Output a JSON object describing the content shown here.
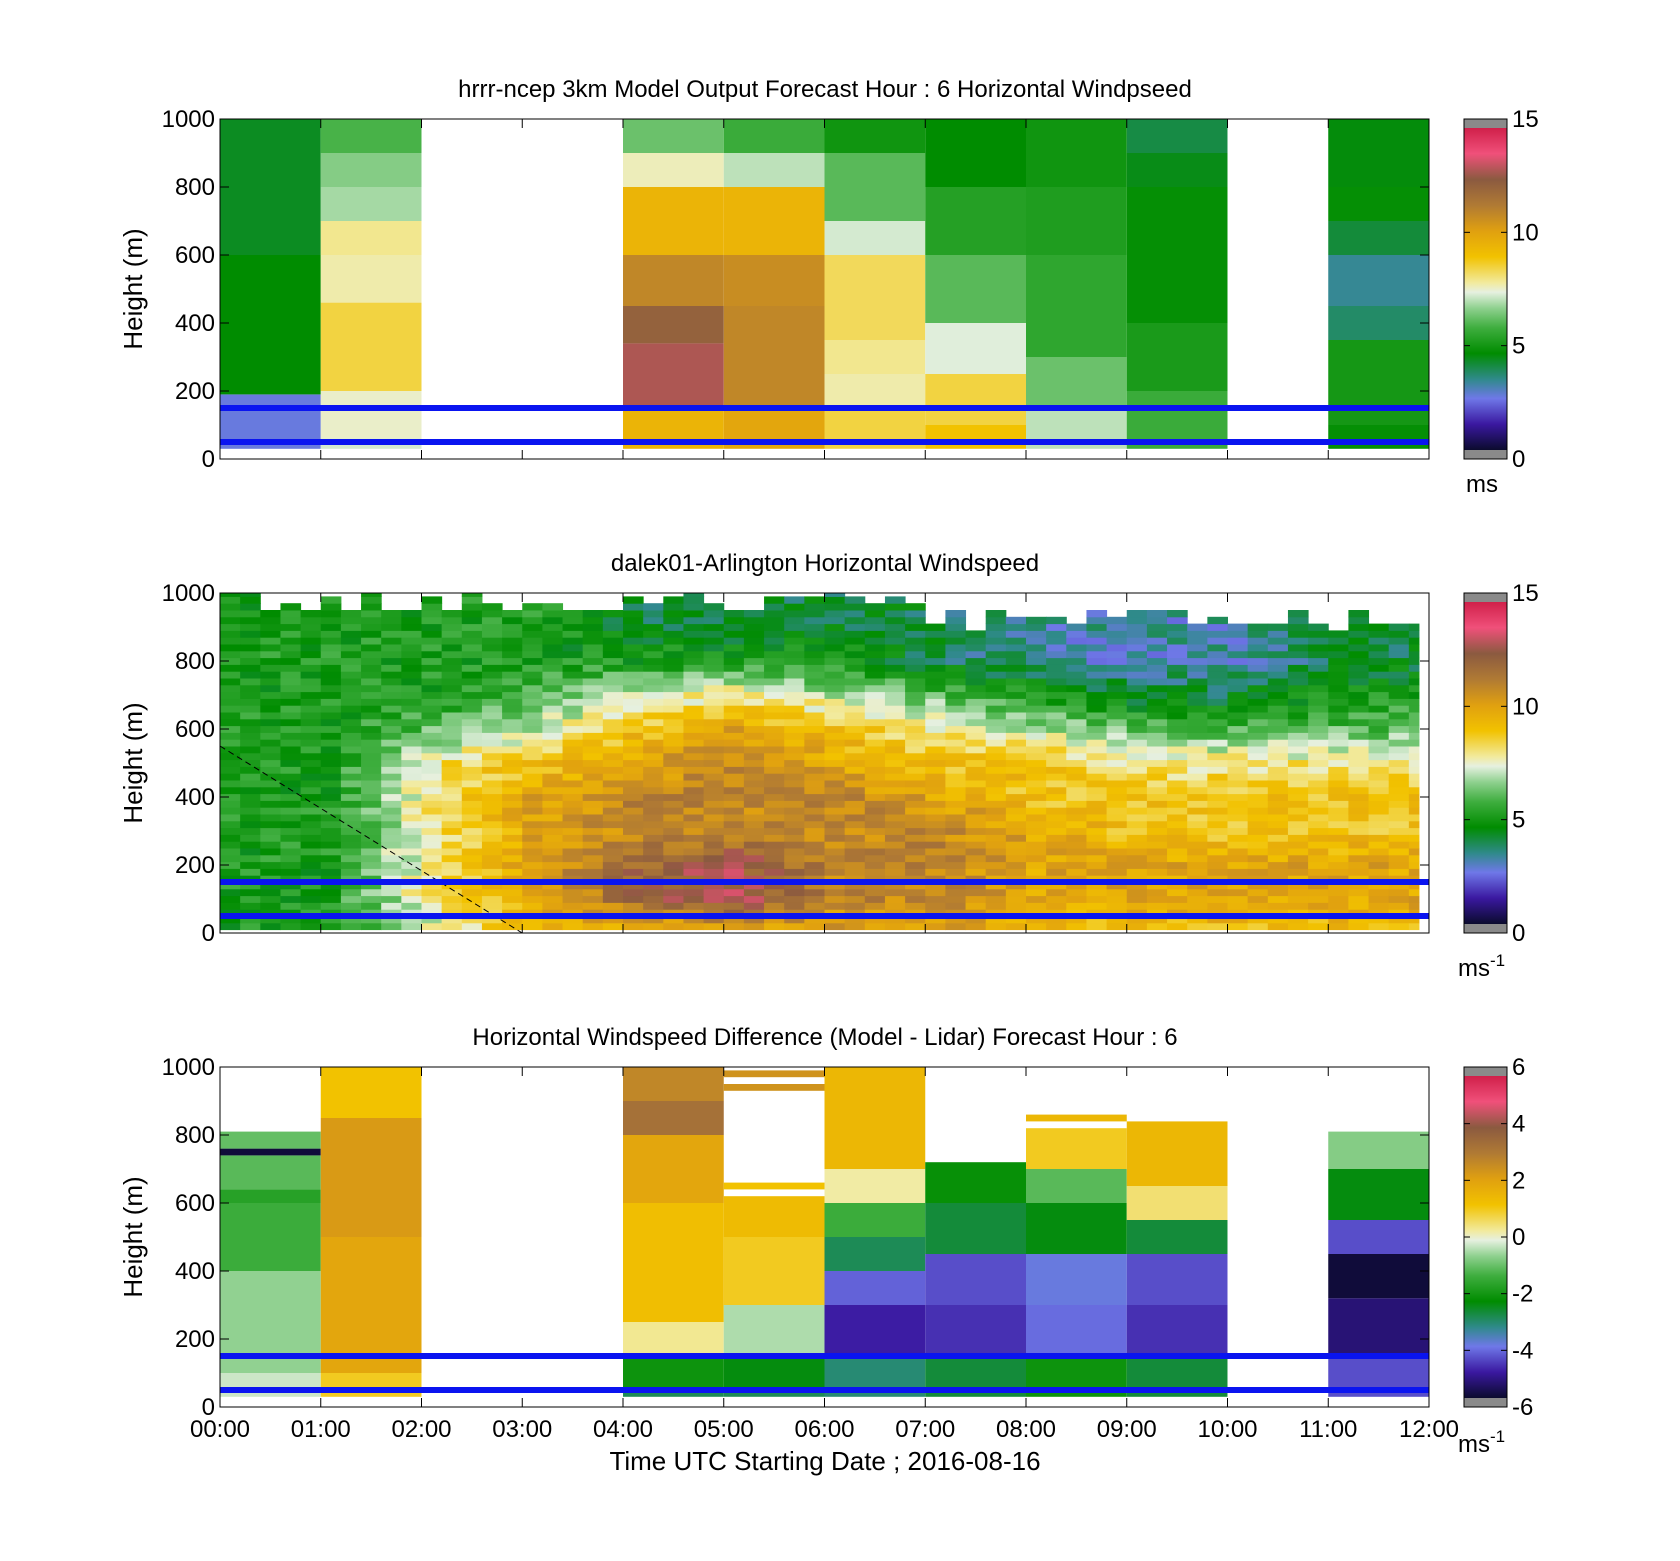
{
  "chart_data": [
    {
      "type": "heatmap",
      "title": "hrrr-ncep 3km Model Output   Forecast Hour : 6 Horizontal Windpseed",
      "ylabel": "Height (m)",
      "xlabel": "",
      "ylim": [
        0,
        1000
      ],
      "yticks": [
        "0",
        "200",
        "400",
        "600",
        "800",
        "1000"
      ],
      "colorbar": {
        "range": [
          0,
          15
        ],
        "ticks": [
          "0",
          "5",
          "10",
          "15"
        ],
        "unit": "ms",
        "unit_sup": ""
      },
      "reference_lines_m": [
        50,
        150
      ],
      "columns": [
        {
          "start": "00:00",
          "bands": [
            [
              30,
              190,
              2.5
            ],
            [
              190,
              600,
              4.5
            ],
            [
              600,
              1000,
              4.2
            ]
          ]
        },
        {
          "start": "01:00",
          "bands": [
            [
              30,
              60,
              7.2
            ],
            [
              60,
              200,
              7.5
            ],
            [
              200,
              460,
              8.5
            ],
            [
              460,
              600,
              7.7
            ],
            [
              600,
              700,
              7.9
            ],
            [
              700,
              800,
              6.8
            ],
            [
              800,
              900,
              6.5
            ],
            [
              900,
              1000,
              5.8
            ]
          ]
        },
        {
          "start": "04:00",
          "bands": [
            [
              30,
              150,
              9.5
            ],
            [
              150,
              340,
              13.0
            ],
            [
              340,
              450,
              12.3
            ],
            [
              450,
              600,
              11.0
            ],
            [
              600,
              800,
              9.5
            ],
            [
              800,
              900,
              7.6
            ],
            [
              900,
              1000,
              6.2
            ]
          ]
        },
        {
          "start": "05:00",
          "bands": [
            [
              30,
              150,
              10.0
            ],
            [
              150,
              450,
              11.0
            ],
            [
              450,
              600,
              10.8
            ],
            [
              600,
              800,
              9.5
            ],
            [
              800,
              900,
              7.0
            ],
            [
              900,
              1000,
              5.6
            ]
          ]
        },
        {
          "start": "06:00",
          "bands": [
            [
              30,
              150,
              8.5
            ],
            [
              150,
              250,
              7.7
            ],
            [
              250,
              350,
              7.9
            ],
            [
              350,
              600,
              8.3
            ],
            [
              600,
              700,
              7.2
            ],
            [
              700,
              900,
              6.0
            ],
            [
              900,
              1000,
              4.8
            ]
          ]
        },
        {
          "start": "07:00",
          "bands": [
            [
              30,
              100,
              9.0
            ],
            [
              100,
              250,
              8.5
            ],
            [
              250,
              400,
              7.3
            ],
            [
              400,
              600,
              6.0
            ],
            [
              600,
              800,
              5.2
            ],
            [
              800,
              1000,
              4.5
            ]
          ]
        },
        {
          "start": "08:00",
          "bands": [
            [
              30,
              150,
              7.0
            ],
            [
              150,
              300,
              6.2
            ],
            [
              300,
              600,
              5.4
            ],
            [
              600,
              800,
              5.1
            ],
            [
              800,
              1000,
              4.8
            ]
          ]
        },
        {
          "start": "09:00",
          "bands": [
            [
              30,
              200,
              5.6
            ],
            [
              200,
              400,
              5.0
            ],
            [
              400,
              800,
              4.6
            ],
            [
              800,
              900,
              4.3
            ],
            [
              900,
              1000,
              3.9
            ]
          ]
        },
        {
          "start": "11:00",
          "bands": [
            [
              30,
              100,
              4.6
            ],
            [
              100,
              350,
              4.9
            ],
            [
              350,
              450,
              3.6
            ],
            [
              450,
              600,
              3.2
            ],
            [
              600,
              700,
              4.0
            ],
            [
              700,
              800,
              4.6
            ],
            [
              800,
              1000,
              4.4
            ]
          ]
        }
      ]
    },
    {
      "type": "heatmap",
      "title": "dalek01-Arlington  Horizontal Windspeed",
      "ylabel": "Height (m)",
      "xlabel": "",
      "ylim": [
        0,
        1000
      ],
      "yticks": [
        "0",
        "200",
        "400",
        "600",
        "800",
        "1000"
      ],
      "colorbar": {
        "range": [
          0,
          15
        ],
        "ticks": [
          "0",
          "5",
          "10",
          "15"
        ],
        "unit": "ms",
        "unit_sup": "-1"
      },
      "reference_lines_m": [
        50,
        150
      ],
      "dashed_line": [
        [
          "00:00",
          550
        ],
        [
          "03:00",
          0
        ]
      ],
      "hourly_profile_anchors_m": [
        0,
        100,
        200,
        300,
        400,
        500,
        600,
        700,
        800,
        900
      ],
      "hourly_profiles": [
        {
          "time": "00:00",
          "values": [
            5,
            5,
            5,
            5,
            5,
            5,
            5,
            5,
            5,
            5
          ]
        },
        {
          "time": "01:00",
          "values": [
            5,
            5,
            5,
            5,
            5,
            5,
            5,
            5,
            5,
            5
          ]
        },
        {
          "time": "02:00",
          "values": [
            7,
            8,
            8,
            8,
            8,
            8,
            6,
            5,
            5,
            5
          ]
        },
        {
          "time": "03:00",
          "values": [
            9,
            10,
            10,
            10,
            10,
            9,
            7,
            6,
            5,
            5
          ]
        },
        {
          "time": "04:00",
          "values": [
            9,
            12,
            12,
            11,
            11,
            10,
            9,
            7,
            5,
            4
          ]
        },
        {
          "time": "05:00",
          "values": [
            10,
            13,
            13,
            11,
            11,
            11,
            10,
            8,
            5,
            4
          ]
        },
        {
          "time": "06:00",
          "values": [
            10,
            11,
            11,
            11,
            11,
            10,
            9,
            7,
            5,
            4
          ]
        },
        {
          "time": "07:00",
          "values": [
            10,
            11,
            11,
            11,
            10,
            9,
            8,
            6,
            4,
            4
          ]
        },
        {
          "time": "08:00",
          "values": [
            9,
            10,
            10,
            10,
            9,
            9,
            7,
            5,
            3,
            3
          ]
        },
        {
          "time": "09:00",
          "values": [
            9,
            10,
            10,
            9,
            9,
            8,
            6,
            4,
            3,
            3
          ]
        },
        {
          "time": "10:00",
          "values": [
            9,
            10,
            10,
            9,
            9,
            8,
            6,
            4,
            3,
            3
          ]
        },
        {
          "time": "11:00",
          "values": [
            9,
            10,
            10,
            9,
            9,
            8,
            6,
            5,
            4,
            4
          ]
        },
        {
          "time": "11:55",
          "values": [
            9,
            10,
            10,
            9,
            9,
            8,
            6,
            5,
            4,
            4
          ]
        }
      ]
    },
    {
      "type": "heatmap",
      "title": "Horizontal Windspeed Difference (Model - Lidar) Forecast Hour : 6",
      "ylabel": "Height (m)",
      "xlabel": "Time UTC  Starting Date ; 2016-08-16",
      "xticks": [
        "00:00",
        "01:00",
        "02:00",
        "03:00",
        "04:00",
        "05:00",
        "06:00",
        "07:00",
        "08:00",
        "09:00",
        "10:00",
        "11:00",
        "12:00"
      ],
      "ylim": [
        0,
        1000
      ],
      "yticks": [
        "0",
        "200",
        "400",
        "600",
        "800",
        "1000"
      ],
      "colorbar": {
        "range": [
          -6,
          6
        ],
        "ticks": [
          "-6",
          "-4",
          "-2",
          "0",
          "2",
          "4",
          "6"
        ],
        "unit": "ms",
        "unit_sup": "-1"
      },
      "reference_lines_m": [
        50,
        150
      ],
      "columns": [
        {
          "start": "00:00",
          "bands": [
            [
              30,
              100,
              -0.3
            ],
            [
              100,
              400,
              -0.7
            ],
            [
              400,
              600,
              -1.5
            ],
            [
              600,
              640,
              -1.8
            ],
            [
              640,
              740,
              -1.2
            ],
            [
              740,
              760,
              -5.9
            ],
            [
              760,
              810,
              -1.1
            ]
          ]
        },
        {
          "start": "01:00",
          "bands": [
            [
              30,
              100,
              1.0
            ],
            [
              100,
              500,
              2.0
            ],
            [
              500,
              850,
              2.3
            ],
            [
              850,
              1000,
              1.2
            ]
          ]
        },
        {
          "start": "04:00",
          "bands": [
            [
              30,
              50,
              -3.0
            ],
            [
              50,
              150,
              -2.2
            ],
            [
              150,
              250,
              0.3
            ],
            [
              250,
              600,
              1.3
            ],
            [
              600,
              800,
              2.0
            ],
            [
              800,
              900,
              3.4
            ],
            [
              900,
              1000,
              2.8
            ]
          ]
        },
        {
          "start": "05:00",
          "bands": [
            [
              30,
              50,
              -3.0
            ],
            [
              50,
              150,
              -2.5
            ],
            [
              150,
              300,
              -0.5
            ],
            [
              300,
              500,
              1.0
            ],
            [
              500,
              620,
              1.4
            ],
            [
              640,
              660,
              1.2
            ],
            [
              930,
              950,
              2.5
            ],
            [
              970,
              990,
              2.5
            ]
          ]
        },
        {
          "start": "06:00",
          "bands": [
            [
              30,
              150,
              -3.2
            ],
            [
              150,
              300,
              -5.0
            ],
            [
              300,
              400,
              -4.3
            ],
            [
              400,
              500,
              -3.0
            ],
            [
              500,
              600,
              -1.5
            ],
            [
              600,
              700,
              0.2
            ],
            [
              700,
              1000,
              1.5
            ]
          ]
        },
        {
          "start": "07:00",
          "bands": [
            [
              30,
              150,
              -2.8
            ],
            [
              150,
              300,
              -4.8
            ],
            [
              300,
              450,
              -4.5
            ],
            [
              450,
              600,
              -2.8
            ],
            [
              600,
              720,
              -2.3
            ]
          ]
        },
        {
          "start": "08:00",
          "bands": [
            [
              30,
              150,
              -2.2
            ],
            [
              150,
              300,
              -4.2
            ],
            [
              300,
              450,
              -4.0
            ],
            [
              450,
              600,
              -2.5
            ],
            [
              600,
              700,
              -1.2
            ],
            [
              700,
              820,
              1.0
            ],
            [
              840,
              860,
              1.5
            ]
          ]
        },
        {
          "start": "09:00",
          "bands": [
            [
              30,
              150,
              -2.8
            ],
            [
              150,
              300,
              -4.8
            ],
            [
              300,
              450,
              -4.5
            ],
            [
              450,
              550,
              -2.8
            ],
            [
              550,
              650,
              0.5
            ],
            [
              650,
              840,
              1.5
            ]
          ]
        },
        {
          "start": "11:00",
          "bands": [
            [
              30,
              150,
              -4.5
            ],
            [
              150,
              320,
              -5.4
            ],
            [
              320,
              450,
              -5.9
            ],
            [
              450,
              550,
              -4.5
            ],
            [
              550,
              700,
              -2.5
            ],
            [
              700,
              810,
              -0.8
            ]
          ]
        }
      ]
    }
  ]
}
